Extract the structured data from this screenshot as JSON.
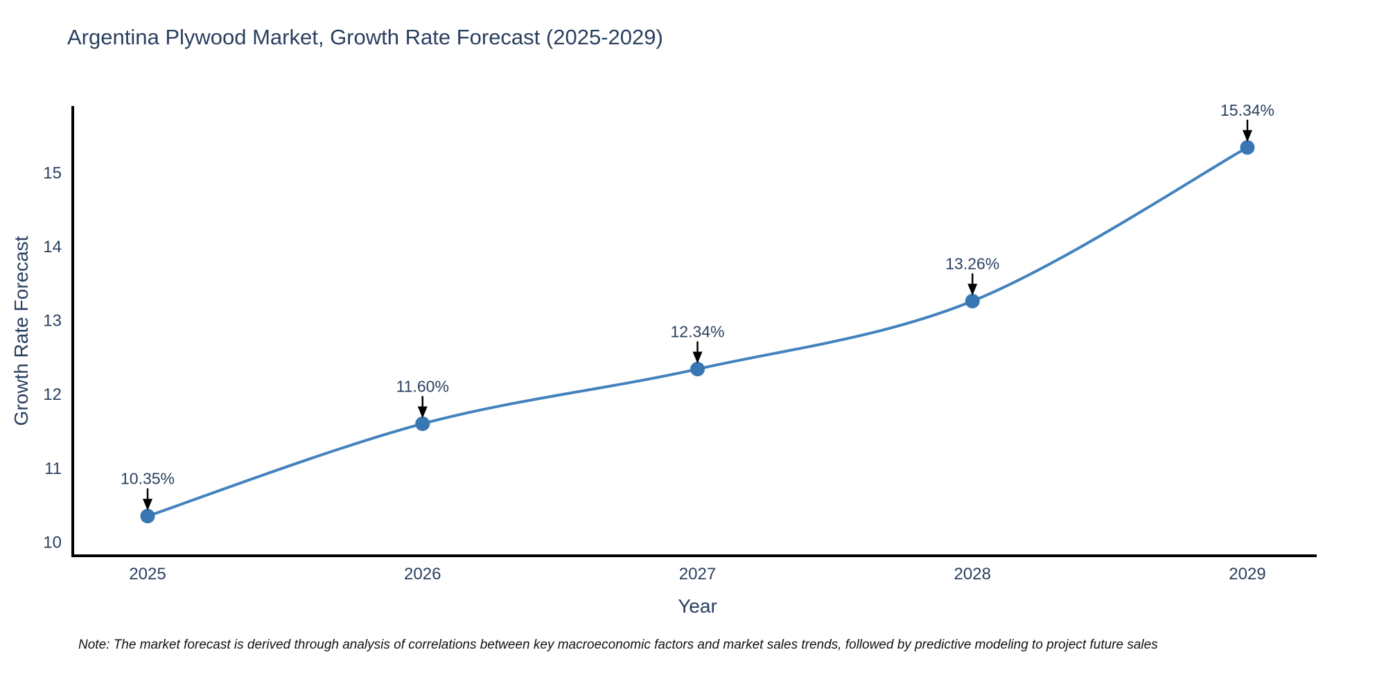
{
  "figure": {
    "background": "#ffffff"
  },
  "chart_data": {
    "type": "line",
    "title": "Argentina Plywood Market, Growth Rate Forecast (2025-2029)",
    "xlabel": "Year",
    "ylabel": "Growth Rate Forecast",
    "x": [
      2025,
      2026,
      2027,
      2028,
      2029
    ],
    "xticks": [
      "2025",
      "2026",
      "2027",
      "2028",
      "2029"
    ],
    "yticks": [
      10,
      11,
      12,
      13,
      14,
      15
    ],
    "ylim": [
      9.8,
      15.9
    ],
    "series": [
      {
        "name": "Growth Rate Forecast",
        "values": [
          10.35,
          11.6,
          12.34,
          13.26,
          15.34
        ],
        "point_labels": [
          "10.35%",
          "11.60%",
          "12.34%",
          "13.26%",
          "15.34%"
        ]
      }
    ],
    "line_shape": "spline",
    "markers": true,
    "grid": false,
    "legend_position": "none",
    "annotations_have_arrows": true,
    "colors": {
      "line": "#4282bd",
      "marker": "#3876b4",
      "axis": "#000000",
      "text": "#2a3f5f",
      "arrow": "#000000"
    },
    "note": "Note: The market forecast is derived through analysis of correlations between key macroeconomic factors and market sales trends, followed by predictive modeling to project future sales"
  }
}
